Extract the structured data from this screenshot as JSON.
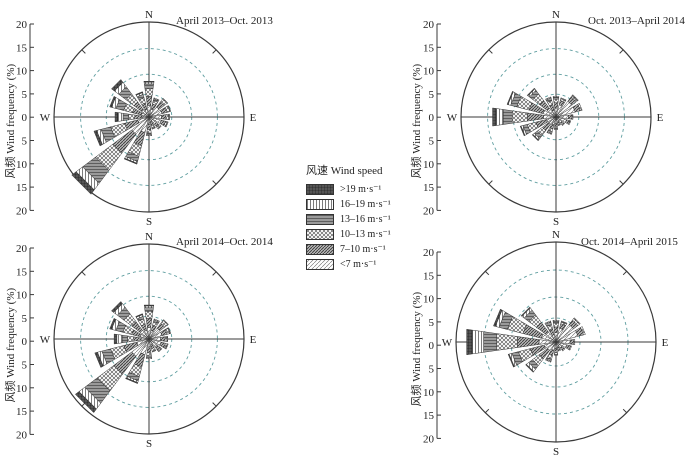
{
  "chart_data": [
    {
      "type": "wind-rose",
      "title": "April 2013–Oct. 2013",
      "ylabel": "风频 Wind frequency (%)",
      "directions": [
        "N",
        "NNE",
        "NE",
        "ENE",
        "E",
        "ESE",
        "SE",
        "SSE",
        "S",
        "SSW",
        "SW",
        "WSW",
        "W",
        "WNW",
        "NW",
        "NNW"
      ],
      "cardinals": [
        "N",
        "E",
        "S",
        "W"
      ],
      "rlim": [
        0,
        20
      ],
      "ticks": [
        "20",
        "15",
        "10",
        "5",
        "0",
        "5",
        "10",
        "15",
        "20"
      ],
      "series": [
        {
          "name": "<7 m·s⁻¹",
          "values": [
            1.3,
            0.9,
            1.4,
            1.5,
            1.4,
            1.4,
            1.0,
            0.6,
            0.8,
            1.8,
            2.4,
            1.3,
            0.8,
            0.9,
            1.0,
            0.9
          ]
        },
        {
          "name": "7–10 m·s⁻¹",
          "values": [
            1.0,
            0.6,
            0.7,
            0.6,
            0.5,
            0.5,
            0.4,
            0.4,
            0.6,
            1.5,
            2.6,
            1.5,
            0.8,
            1.0,
            1.1,
            0.7
          ]
        },
        {
          "name": "10–13 m·s⁻¹",
          "values": [
            0.9,
            0.4,
            0.4,
            0.3,
            0.3,
            0.2,
            0.2,
            0.3,
            0.4,
            1.2,
            2.4,
            1.6,
            0.7,
            1.0,
            1.1,
            0.6
          ]
        },
        {
          "name": "13–16 m·s⁻¹",
          "values": [
            0.5,
            0.2,
            0.1,
            0.1,
            0.1,
            0.1,
            0.1,
            0.1,
            0.2,
            0.6,
            1.8,
            1.1,
            0.6,
            0.9,
            1.0,
            0.4
          ]
        },
        {
          "name": "16–19 m·s⁻¹",
          "values": [
            0.2,
            0.1,
            0.0,
            0.0,
            0.0,
            0.0,
            0.0,
            0.0,
            0.1,
            0.2,
            0.9,
            0.5,
            0.6,
            0.5,
            0.6,
            0.2
          ]
        },
        {
          "name": ">19 m·s⁻¹",
          "values": [
            0.1,
            0.0,
            0.0,
            0.0,
            0.0,
            0.0,
            0.0,
            0.0,
            0.0,
            0.1,
            0.6,
            0.3,
            0.3,
            0.2,
            0.4,
            0.1
          ]
        }
      ]
    },
    {
      "type": "wind-rose",
      "title": "Oct. 2013–April 2014",
      "ylabel": "风频 Wind frequency (%)",
      "directions": [
        "N",
        "NNE",
        "NE",
        "ENE",
        "E",
        "ESE",
        "SE",
        "SSE",
        "S",
        "SSW",
        "SW",
        "WSW",
        "W",
        "WNW",
        "NW",
        "NNW"
      ],
      "cardinals": [
        "N",
        "E",
        "S",
        "W"
      ],
      "rlim": [
        0,
        20
      ],
      "ticks": [
        "20",
        "15",
        "10",
        "5",
        "0",
        "5",
        "10",
        "15",
        "20"
      ],
      "series": [
        {
          "name": "<7 m·s⁻¹",
          "values": [
            1.0,
            1.4,
            2.2,
            2.2,
            1.4,
            1.2,
            0.8,
            0.6,
            0.7,
            0.9,
            1.0,
            1.1,
            1.4,
            1.5,
            1.2,
            0.8
          ]
        },
        {
          "name": "7–10 m·s⁻¹",
          "values": [
            0.6,
            0.5,
            0.6,
            0.6,
            0.4,
            0.4,
            0.3,
            0.3,
            0.4,
            0.5,
            0.9,
            1.2,
            1.8,
            1.6,
            1.1,
            0.6
          ]
        },
        {
          "name": "10–13 m·s⁻¹",
          "values": [
            0.4,
            0.2,
            0.2,
            0.2,
            0.1,
            0.1,
            0.1,
            0.1,
            0.2,
            0.3,
            0.7,
            1.0,
            1.7,
            1.4,
            0.9,
            0.5
          ]
        },
        {
          "name": "13–16 m·s⁻¹",
          "values": [
            0.2,
            0.1,
            0.1,
            0.0,
            0.0,
            0.0,
            0.0,
            0.0,
            0.1,
            0.2,
            0.4,
            0.5,
            1.0,
            0.7,
            0.5,
            0.3
          ]
        },
        {
          "name": "16–19 m·s⁻¹",
          "values": [
            0.1,
            0.0,
            0.0,
            0.0,
            0.0,
            0.0,
            0.0,
            0.0,
            0.0,
            0.1,
            0.2,
            0.2,
            0.8,
            0.3,
            0.2,
            0.1
          ]
        },
        {
          "name": ">19 m·s⁻¹",
          "values": [
            0.0,
            0.0,
            0.0,
            0.0,
            0.0,
            0.0,
            0.0,
            0.0,
            0.0,
            0.0,
            0.1,
            0.1,
            0.4,
            0.1,
            0.1,
            0.0
          ]
        }
      ]
    },
    {
      "type": "wind-rose",
      "title": "April 2014–Oct. 2014",
      "ylabel": "风频 Wind frequency (%)",
      "directions": [
        "N",
        "NNE",
        "NE",
        "ENE",
        "E",
        "ESE",
        "SE",
        "SSE",
        "S",
        "SSW",
        "SW",
        "WSW",
        "W",
        "WNW",
        "NW",
        "NNW"
      ],
      "cardinals": [
        "N",
        "E",
        "S",
        "W"
      ],
      "rlim": [
        0,
        20
      ],
      "ticks": [
        "20",
        "15",
        "10",
        "5",
        "0",
        "5",
        "10",
        "15",
        "20"
      ],
      "series": [
        {
          "name": "<7 m·s⁻¹",
          "values": [
            1.3,
            1.0,
            1.5,
            1.5,
            1.3,
            1.4,
            1.1,
            0.7,
            0.9,
            1.8,
            2.4,
            1.4,
            0.9,
            1.0,
            1.2,
            1.0
          ]
        },
        {
          "name": "7–10 m·s⁻¹",
          "values": [
            1.0,
            0.6,
            0.7,
            0.6,
            0.5,
            0.5,
            0.4,
            0.4,
            0.6,
            1.4,
            2.5,
            1.5,
            0.8,
            1.0,
            1.2,
            0.7
          ]
        },
        {
          "name": "10–13 m·s⁻¹",
          "values": [
            0.8,
            0.4,
            0.4,
            0.3,
            0.2,
            0.2,
            0.2,
            0.3,
            0.4,
            1.1,
            2.3,
            1.5,
            0.7,
            1.0,
            1.1,
            0.6
          ]
        },
        {
          "name": "13–16 m·s⁻¹",
          "values": [
            0.4,
            0.2,
            0.1,
            0.1,
            0.1,
            0.1,
            0.1,
            0.1,
            0.2,
            0.5,
            1.7,
            1.0,
            0.6,
            0.8,
            0.9,
            0.3
          ]
        },
        {
          "name": "16–19 m·s⁻¹",
          "values": [
            0.2,
            0.1,
            0.0,
            0.0,
            0.0,
            0.0,
            0.0,
            0.0,
            0.1,
            0.2,
            0.8,
            0.5,
            0.6,
            0.5,
            0.5,
            0.2
          ]
        },
        {
          "name": ">19 m·s⁻¹",
          "values": [
            0.1,
            0.0,
            0.0,
            0.0,
            0.0,
            0.0,
            0.0,
            0.0,
            0.0,
            0.1,
            0.5,
            0.3,
            0.3,
            0.2,
            0.3,
            0.1
          ]
        }
      ]
    },
    {
      "type": "wind-rose",
      "title": "Oct. 2014–April 2015",
      "ylabel": "风频 Wind frequency (%)",
      "directions": [
        "N",
        "NNE",
        "NE",
        "ENE",
        "E",
        "ESE",
        "SE",
        "SSE",
        "S",
        "SSW",
        "SW",
        "WSW",
        "W",
        "WNW",
        "NW",
        "NNW"
      ],
      "cardinals": [
        "N",
        "E",
        "S",
        "W"
      ],
      "rlim": [
        0,
        20
      ],
      "ticks": [
        "20",
        "15",
        "10",
        "5",
        "0",
        "5",
        "10",
        "15",
        "20"
      ],
      "series": [
        {
          "name": "<7 m·s⁻¹",
          "values": [
            1.0,
            1.5,
            2.3,
            2.4,
            1.5,
            1.2,
            0.8,
            0.6,
            0.7,
            0.9,
            1.1,
            1.3,
            1.8,
            1.6,
            1.3,
            0.8
          ]
        },
        {
          "name": "7–10 m·s⁻¹",
          "values": [
            0.6,
            0.5,
            0.6,
            0.6,
            0.4,
            0.4,
            0.3,
            0.3,
            0.4,
            0.6,
            1.1,
            1.5,
            2.3,
            2.0,
            1.3,
            0.6
          ]
        },
        {
          "name": "10–13 m·s⁻¹",
          "values": [
            0.4,
            0.2,
            0.2,
            0.2,
            0.1,
            0.1,
            0.1,
            0.1,
            0.2,
            0.4,
            0.9,
            1.3,
            2.2,
            1.7,
            1.0,
            0.5
          ]
        },
        {
          "name": "13–16 m·s⁻¹",
          "values": [
            0.2,
            0.1,
            0.1,
            0.0,
            0.0,
            0.0,
            0.0,
            0.0,
            0.1,
            0.2,
            0.5,
            0.7,
            1.4,
            0.9,
            0.6,
            0.3
          ]
        },
        {
          "name": "16–19 m·s⁻¹",
          "values": [
            0.1,
            0.0,
            0.0,
            0.0,
            0.0,
            0.0,
            0.0,
            0.0,
            0.0,
            0.1,
            0.3,
            0.3,
            1.2,
            0.4,
            0.3,
            0.1
          ]
        },
        {
          "name": ">19 m·s⁻¹",
          "values": [
            0.0,
            0.0,
            0.0,
            0.0,
            0.0,
            0.0,
            0.0,
            0.0,
            0.0,
            0.0,
            0.1,
            0.1,
            0.6,
            0.2,
            0.1,
            0.0
          ]
        }
      ]
    }
  ],
  "legend": {
    "title": "风速 Wind speed",
    "items": [
      {
        "label": ">19 m·s⁻¹",
        "pattern": "grid"
      },
      {
        "label": "16–19 m·s⁻¹",
        "pattern": "vlines"
      },
      {
        "label": "13–16 m·s⁻¹",
        "pattern": "hlines"
      },
      {
        "label": "10–13 m·s⁻¹",
        "pattern": "cross"
      },
      {
        "label": "7–10 m·s⁻¹",
        "pattern": "dense-diag"
      },
      {
        "label": "<7 m·s⁻¹",
        "pattern": "light-diag"
      }
    ]
  },
  "colors": {
    "axis": "#3a3a3a",
    "dashed_ring": "#5f9ea0",
    "text": "#222222"
  }
}
